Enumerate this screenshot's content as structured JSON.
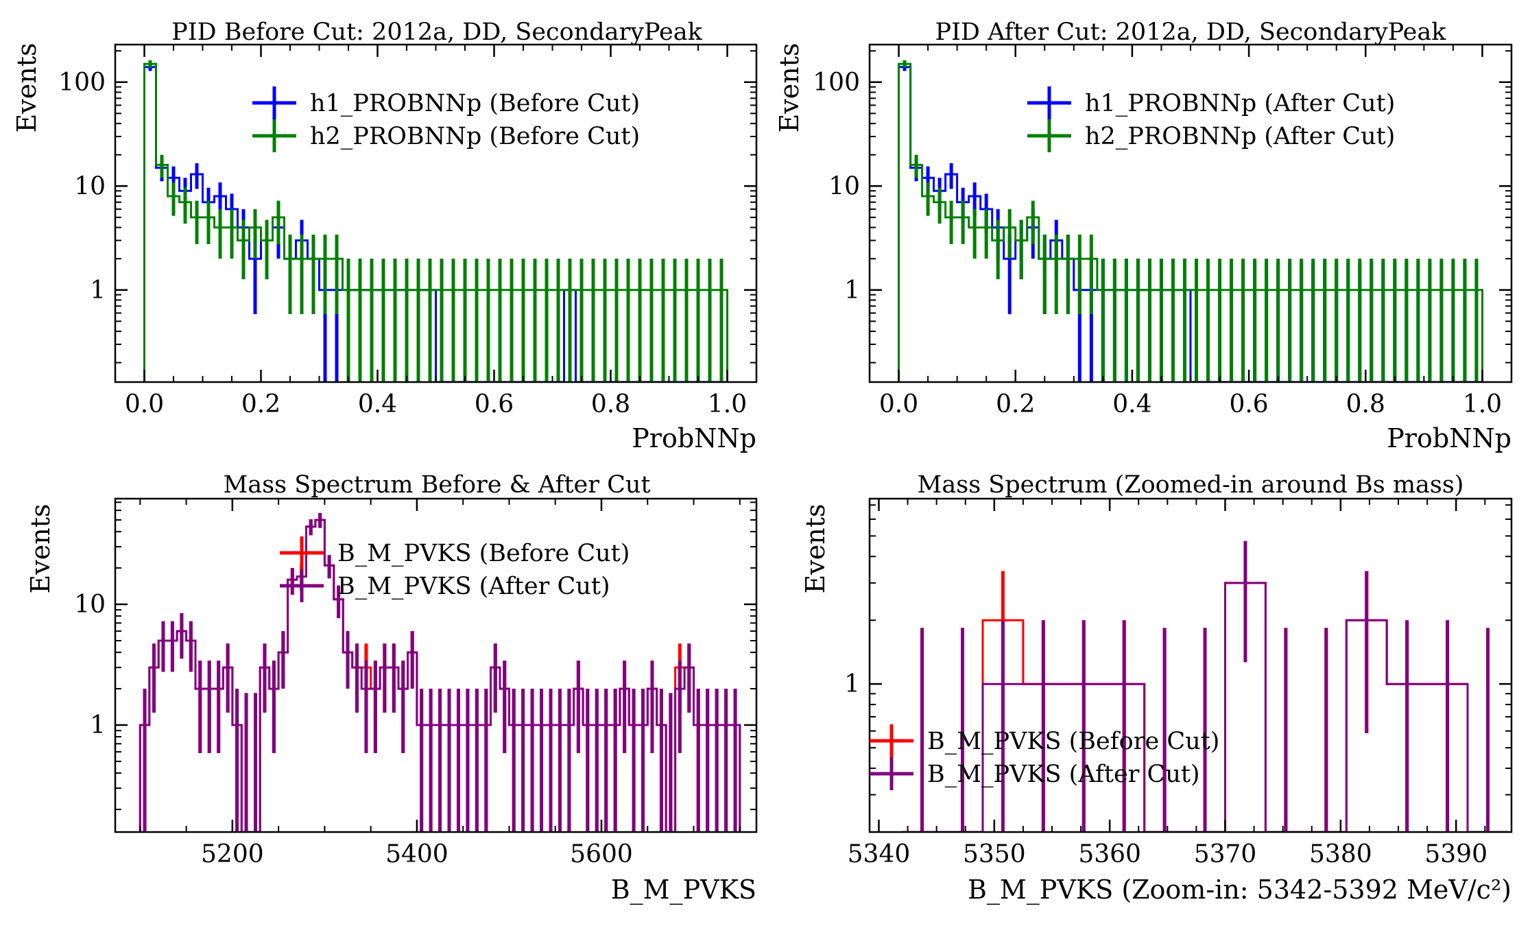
{
  "colors": {
    "blue": "#0000ff",
    "green": "#008000",
    "red": "#ff0000",
    "purple": "#800080"
  },
  "chart_data": [
    {
      "type": "histogram",
      "title": "PID Before Cut: 2012a, DD, SecondaryPeak",
      "xlabel": "ProbNNp",
      "ylabel": "Events",
      "xlim": [
        -0.05,
        1.05
      ],
      "ylim": [
        0.13,
        230
      ],
      "yscale": "log",
      "xticks": [
        0.0,
        0.2,
        0.4,
        0.6,
        0.8,
        1.0
      ],
      "xtick_labels": [
        "0.0",
        "0.2",
        "0.4",
        "0.6",
        "0.8",
        "1.0"
      ],
      "yticks": [
        1,
        10,
        100
      ],
      "ytick_labels": [
        "1",
        "10",
        "100"
      ],
      "legend_position": "top-right",
      "series": [
        {
          "name": "h1_PROBNNp (Before Cut)",
          "color": "#0000ff",
          "x_start": 0.0,
          "bin_width": 0.02,
          "values": [
            140,
            15,
            12,
            9,
            13,
            7,
            8,
            6,
            4,
            2,
            3,
            4,
            2,
            3,
            2,
            1,
            1,
            1,
            1,
            1,
            1,
            1,
            1,
            1,
            1,
            0,
            0,
            0,
            0,
            0,
            0,
            0,
            0,
            0,
            0,
            0,
            1,
            0,
            0,
            0,
            0,
            0,
            0,
            0,
            0,
            0,
            0,
            0,
            0,
            0
          ]
        },
        {
          "name": "h2_PROBNNp (Before Cut)",
          "color": "#008000",
          "x_start": 0.0,
          "bin_width": 0.02,
          "values": [
            150,
            16,
            8,
            7,
            5,
            5,
            4,
            4,
            3,
            4,
            3,
            5,
            2,
            2,
            2,
            2,
            2,
            1,
            1,
            1,
            1,
            1,
            1,
            1,
            1,
            1,
            1,
            1,
            1,
            1,
            1,
            1,
            1,
            1,
            1,
            1,
            1,
            1,
            1,
            1,
            1,
            1,
            1,
            1,
            1,
            1,
            1,
            1,
            1,
            1
          ]
        }
      ]
    },
    {
      "type": "histogram",
      "title": "PID After Cut: 2012a, DD, SecondaryPeak",
      "xlabel": "ProbNNp",
      "ylabel": "Events",
      "xlim": [
        -0.05,
        1.05
      ],
      "ylim": [
        0.13,
        230
      ],
      "yscale": "log",
      "xticks": [
        0.0,
        0.2,
        0.4,
        0.6,
        0.8,
        1.0
      ],
      "xtick_labels": [
        "0.0",
        "0.2",
        "0.4",
        "0.6",
        "0.8",
        "1.0"
      ],
      "yticks": [
        1,
        10,
        100
      ],
      "ytick_labels": [
        "1",
        "10",
        "100"
      ],
      "legend_position": "top-right",
      "series": [
        {
          "name": "h1_PROBNNp (After Cut)",
          "color": "#0000ff",
          "x_start": 0.0,
          "bin_width": 0.02,
          "values": [
            140,
            15,
            12,
            9,
            13,
            7,
            8,
            6,
            4,
            2,
            3,
            4,
            2,
            3,
            2,
            1,
            1,
            1,
            1,
            1,
            1,
            1,
            1,
            1,
            1,
            0,
            0,
            0,
            0,
            0,
            0,
            0,
            0,
            0,
            0,
            0,
            0,
            0,
            0,
            0,
            0,
            0,
            0,
            0,
            0,
            0,
            0,
            0,
            0,
            0
          ]
        },
        {
          "name": "h2_PROBNNp (After Cut)",
          "color": "#008000",
          "x_start": 0.0,
          "bin_width": 0.02,
          "values": [
            150,
            16,
            8,
            7,
            5,
            5,
            4,
            4,
            3,
            4,
            3,
            5,
            2,
            2,
            2,
            2,
            2,
            1,
            1,
            1,
            1,
            1,
            1,
            1,
            1,
            1,
            1,
            1,
            1,
            1,
            1,
            1,
            1,
            1,
            1,
            1,
            1,
            1,
            1,
            1,
            1,
            1,
            1,
            1,
            1,
            1,
            1,
            1,
            1,
            1
          ]
        }
      ]
    },
    {
      "type": "histogram",
      "title": "Mass Spectrum Before & After Cut",
      "xlabel": "B_M_PVKS",
      "ylabel": "Events",
      "xlim": [
        5073,
        5768
      ],
      "ylim": [
        0.13,
        75
      ],
      "yscale": "log",
      "xticks": [
        5200,
        5400,
        5600
      ],
      "xtick_labels": [
        "5200",
        "5400",
        "5600"
      ],
      "yticks": [
        1,
        10
      ],
      "ytick_labels": [
        "1",
        "10"
      ],
      "legend_position": "top-center",
      "series": [
        {
          "name": "B_M_PVKS (Before Cut)",
          "color": "#ff0000",
          "x_start": 5100,
          "bin_width": 10,
          "values": [
            1,
            3,
            5,
            5,
            6,
            5,
            2,
            2,
            2,
            3,
            1,
            0,
            0,
            3,
            2,
            4,
            16,
            17,
            44,
            50,
            21,
            11,
            4,
            3,
            3,
            2,
            3,
            3,
            2,
            4,
            1,
            1,
            1,
            1,
            1,
            1,
            1,
            1,
            3,
            2,
            1,
            1,
            1,
            1,
            1,
            1,
            1,
            2,
            1,
            1,
            1,
            1,
            2,
            1,
            1,
            2,
            1,
            0,
            3,
            3,
            1,
            1,
            1,
            1,
            1
          ]
        },
        {
          "name": "B_M_PVKS (After Cut)",
          "color": "#800080",
          "x_start": 5100,
          "bin_width": 10,
          "values": [
            1,
            3,
            5,
            5,
            6,
            5,
            2,
            2,
            2,
            3,
            1,
            0,
            0,
            3,
            2,
            4,
            16,
            17,
            44,
            50,
            21,
            11,
            4,
            3,
            2,
            2,
            3,
            3,
            2,
            4,
            1,
            1,
            1,
            1,
            1,
            1,
            1,
            1,
            3,
            2,
            1,
            1,
            1,
            1,
            1,
            1,
            1,
            2,
            1,
            1,
            1,
            1,
            2,
            1,
            1,
            2,
            1,
            0,
            2,
            3,
            1,
            1,
            1,
            1,
            1
          ]
        }
      ]
    },
    {
      "type": "histogram",
      "title": "Mass Spectrum (Zoomed-in around Bs mass)",
      "xlabel": "B_M_PVKS (Zoom-in: 5342-5392 MeV/c²)",
      "ylabel": "Events",
      "xlim": [
        5339.2,
        5394.8
      ],
      "ylim": [
        0.2,
        7.5
      ],
      "yscale": "log",
      "xticks": [
        5340,
        5350,
        5360,
        5370,
        5380,
        5390
      ],
      "xtick_labels": [
        "5340",
        "5350",
        "5360",
        "5370",
        "5380",
        "5390"
      ],
      "yticks": [
        1
      ],
      "ytick_labels": [
        "1"
      ],
      "legend_position": "lower-left",
      "series": [
        {
          "name": "B_M_PVKS (Before Cut)",
          "color": "#ff0000",
          "x_start": 5342,
          "bin_width": 3.5,
          "values": [
            0,
            0,
            2,
            1,
            1,
            1,
            0,
            0,
            3,
            0,
            0,
            2,
            1,
            1,
            0
          ]
        },
        {
          "name": "B_M_PVKS (After Cut)",
          "color": "#800080",
          "x_start": 5342,
          "bin_width": 3.5,
          "values": [
            0,
            0,
            1,
            1,
            1,
            1,
            0,
            0,
            3,
            0,
            0,
            2,
            1,
            1,
            0
          ]
        }
      ]
    }
  ]
}
